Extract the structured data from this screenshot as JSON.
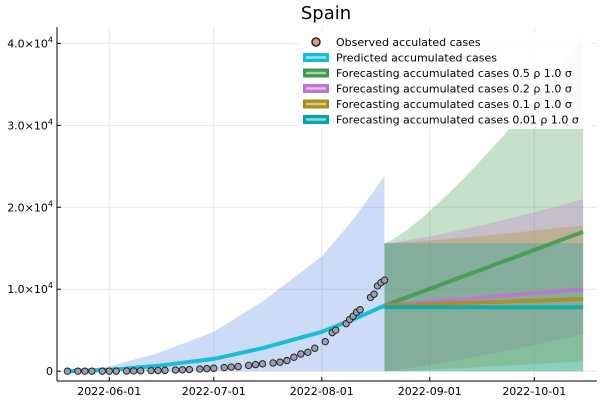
{
  "chart_data": {
    "type": "line",
    "title": "Spain",
    "xlabel": "",
    "ylabel": "",
    "x_ticks": [
      "2022-06-01",
      "2022-07-01",
      "2022-08-01",
      "2022-09-01",
      "2022-10-01"
    ],
    "y_ticks": [
      {
        "value": 0,
        "base": "0",
        "exp": ""
      },
      {
        "value": 10000,
        "base": "1.0×10",
        "exp": "4"
      },
      {
        "value": 20000,
        "base": "2.0×10",
        "exp": "4"
      },
      {
        "value": 30000,
        "base": "3.0×10",
        "exp": "4"
      },
      {
        "value": 40000,
        "base": "4.0×10",
        "exp": "4"
      }
    ],
    "xlim": [
      "2022-05-17",
      "2022-10-19"
    ],
    "ylim": [
      -1200,
      42000
    ],
    "grid": true,
    "legend_position": "top-right",
    "legend": [
      {
        "label": "Observed acculated cases",
        "kind": "marker",
        "color": "#e1a07d"
      },
      {
        "label": "Predicted accumulated cases",
        "kind": "line",
        "color": "#17bdd6"
      },
      {
        "label": "Forecasting accumulated cases 0.5 ρ 1.0 σ",
        "kind": "line",
        "color": "#3e9a4b"
      },
      {
        "label": "Forecasting accumulated cases 0.2 ρ 1.0 σ",
        "kind": "line",
        "color": "#c271d2"
      },
      {
        "label": "Forecasting accumulated cases 0.1 ρ 1.0 σ",
        "kind": "line",
        "color": "#ac8d18"
      },
      {
        "label": "Forecasting accumulated cases 0.01 ρ 1.0 σ",
        "kind": "line",
        "color": "#00a9ad"
      }
    ],
    "observed": {
      "name": "Observed acculated cases",
      "color": "#e1a07d",
      "points": [
        [
          "2022-05-20",
          0
        ],
        [
          "2022-05-23",
          0
        ],
        [
          "2022-05-25",
          0
        ],
        [
          "2022-05-27",
          0
        ],
        [
          "2022-05-30",
          0
        ],
        [
          "2022-06-01",
          0
        ],
        [
          "2022-06-03",
          0
        ],
        [
          "2022-06-06",
          20
        ],
        [
          "2022-06-08",
          30
        ],
        [
          "2022-06-10",
          40
        ],
        [
          "2022-06-13",
          60
        ],
        [
          "2022-06-15",
          80
        ],
        [
          "2022-06-17",
          100
        ],
        [
          "2022-06-20",
          140
        ],
        [
          "2022-06-22",
          170
        ],
        [
          "2022-06-24",
          200
        ],
        [
          "2022-06-27",
          260
        ],
        [
          "2022-06-29",
          310
        ],
        [
          "2022-07-01",
          360
        ],
        [
          "2022-07-04",
          440
        ],
        [
          "2022-07-06",
          500
        ],
        [
          "2022-07-08",
          560
        ],
        [
          "2022-07-11",
          700
        ],
        [
          "2022-07-13",
          800
        ],
        [
          "2022-07-15",
          900
        ],
        [
          "2022-07-18",
          1000
        ],
        [
          "2022-07-20",
          1100
        ],
        [
          "2022-07-22",
          1300
        ],
        [
          "2022-07-24",
          1700
        ],
        [
          "2022-07-26",
          2100
        ],
        [
          "2022-07-28",
          2300
        ],
        [
          "2022-07-30",
          2800
        ],
        [
          "2022-08-02",
          3600
        ],
        [
          "2022-08-04",
          4700
        ],
        [
          "2022-08-05",
          5000
        ],
        [
          "2022-08-08",
          5800
        ],
        [
          "2022-08-09",
          6300
        ],
        [
          "2022-08-10",
          6700
        ],
        [
          "2022-08-11",
          7200
        ],
        [
          "2022-08-12",
          7500
        ],
        [
          "2022-08-15",
          9000
        ],
        [
          "2022-08-16",
          9400
        ],
        [
          "2022-08-17",
          10400
        ],
        [
          "2022-08-18",
          10800
        ],
        [
          "2022-08-19",
          11100
        ]
      ]
    },
    "predicted": {
      "name": "Predicted accumulated cases",
      "color": "#17bdd6",
      "points": [
        [
          "2022-05-20",
          0
        ],
        [
          "2022-06-01",
          150
        ],
        [
          "2022-06-15",
          650
        ],
        [
          "2022-07-01",
          1500
        ],
        [
          "2022-07-15",
          2800
        ],
        [
          "2022-08-01",
          4800
        ],
        [
          "2022-08-10",
          6300
        ],
        [
          "2022-08-19",
          8000
        ]
      ],
      "band": {
        "color": "#6496e6",
        "lower": [
          [
            "2022-05-20",
            0
          ],
          [
            "2022-06-01",
            0
          ],
          [
            "2022-06-15",
            0
          ],
          [
            "2022-07-01",
            0
          ],
          [
            "2022-07-15",
            0
          ],
          [
            "2022-08-01",
            0
          ],
          [
            "2022-08-10",
            0
          ],
          [
            "2022-08-19",
            0
          ]
        ],
        "upper": [
          [
            "2022-05-20",
            0
          ],
          [
            "2022-06-01",
            600
          ],
          [
            "2022-06-15",
            2200
          ],
          [
            "2022-07-01",
            4800
          ],
          [
            "2022-07-15",
            8500
          ],
          [
            "2022-08-01",
            14000
          ],
          [
            "2022-08-10",
            18500
          ],
          [
            "2022-08-19",
            23800
          ]
        ]
      }
    },
    "forecast_start": "2022-08-19",
    "forecast_end": "2022-10-15",
    "forecasts": [
      {
        "name": "Forecasting accumulated cases 0.5 ρ 1.0 σ",
        "color": "#3e9a4b",
        "band_color": "#3e9a4b",
        "start": 8000,
        "end": 17000,
        "band_lower_end": 0,
        "band_upper_start": 15600,
        "band_upper_end": 40600
      },
      {
        "name": "Forecasting accumulated cases 0.2 ρ 1.0 σ",
        "color": "#c271d2",
        "band_color": "#c271d2",
        "start": 8000,
        "end": 10000,
        "band_lower_end": 4500,
        "band_upper_start": 15600,
        "band_upper_end": 21000
      },
      {
        "name": "Forecasting accumulated cases 0.1 ρ 1.0 σ",
        "color": "#ac8d18",
        "band_color": "#ac8d18",
        "start": 8000,
        "end": 8800,
        "band_lower_end": 1200,
        "band_upper_start": 15600,
        "band_upper_end": 17800
      },
      {
        "name": "Forecasting accumulated cases 0.01 ρ 1.0 σ",
        "color": "#00a9ad",
        "band_color": "#00a9ad",
        "start": 7800,
        "end": 7800,
        "band_lower_end": 0,
        "band_upper_start": 15600,
        "band_upper_end": 15600
      }
    ]
  }
}
